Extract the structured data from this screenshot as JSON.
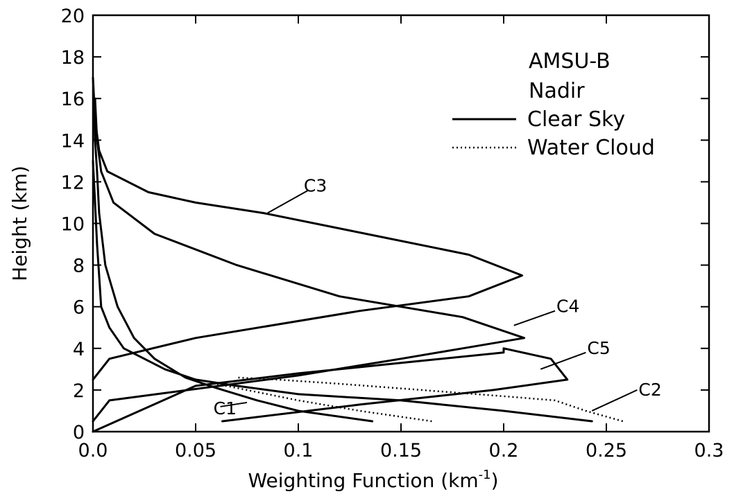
{
  "chart_data": {
    "type": "line",
    "xlabel": "Weighting Function (km",
    "xlabel_sup": "-1",
    "xlabel_close": ")",
    "ylabel": "Height (km)",
    "xlim": [
      0,
      0.3
    ],
    "ylim": [
      0,
      20
    ],
    "x_ticks": [
      0,
      0.05,
      0.1,
      0.15,
      0.2,
      0.25,
      0.3
    ],
    "x_tick_labels": [
      "0.0",
      "0.05",
      "0.1",
      "0.15",
      "0.2",
      "0.25",
      "0.3"
    ],
    "y_ticks": [
      0,
      2,
      4,
      6,
      8,
      10,
      12,
      14,
      16,
      18,
      20
    ],
    "y_tick_labels": [
      "0",
      "2",
      "4",
      "6",
      "8",
      "10",
      "12",
      "14",
      "16",
      "18",
      "20"
    ],
    "grid": false,
    "legend": {
      "placement": "top-right",
      "header": [
        "AMSU-B",
        "Nadir"
      ],
      "entries": [
        {
          "label": "Clear Sky",
          "style": "solid"
        },
        {
          "label": "Water Cloud",
          "style": "dotted"
        }
      ]
    },
    "series": [
      {
        "id": "C1",
        "style": "solid",
        "points": [
          [
            0.136,
            0.5
          ],
          [
            0.1,
            1.0
          ],
          [
            0.08,
            1.5
          ],
          [
            0.06,
            2.1
          ],
          [
            0.045,
            2.6
          ],
          [
            0.03,
            3.5
          ],
          [
            0.02,
            4.5
          ],
          [
            0.012,
            6.0
          ],
          [
            0.006,
            8.0
          ],
          [
            0.003,
            10.5
          ],
          [
            0.002,
            12.5
          ],
          [
            0.001,
            14.0
          ],
          [
            0.0005,
            16.0
          ]
        ]
      },
      {
        "id": "C2",
        "style": "solid",
        "points": [
          [
            0.0,
            0.5
          ],
          [
            0.008,
            1.5
          ],
          [
            0.1,
            2.7
          ],
          [
            0.15,
            3.5
          ],
          [
            0.18,
            4.0
          ],
          [
            0.21,
            4.5
          ],
          [
            0.18,
            5.5
          ],
          [
            0.12,
            6.5
          ],
          [
            0.07,
            8.0
          ],
          [
            0.03,
            9.5
          ],
          [
            0.01,
            11.0
          ],
          [
            0.004,
            12.5
          ],
          [
            0.002,
            14.0
          ],
          [
            0.001,
            16.0
          ]
        ]
      },
      {
        "id": "C3",
        "style": "solid",
        "points": [
          [
            0.0,
            2.5
          ],
          [
            0.008,
            3.5
          ],
          [
            0.05,
            4.5
          ],
          [
            0.13,
            5.8
          ],
          [
            0.183,
            6.5
          ],
          [
            0.209,
            7.5
          ],
          [
            0.183,
            8.5
          ],
          [
            0.133,
            9.5
          ],
          [
            0.083,
            10.5
          ],
          [
            0.05,
            11.0
          ],
          [
            0.027,
            11.5
          ],
          [
            0.007,
            12.5
          ],
          [
            0.003,
            13.5
          ],
          [
            0.001,
            15.0
          ],
          [
            0.0,
            17.0
          ]
        ]
      },
      {
        "id": "C4",
        "style": "solid",
        "points": [
          [
            0.0,
            0.0
          ],
          [
            0.05,
            2.2
          ],
          [
            0.1,
            2.8
          ],
          [
            0.15,
            3.3
          ],
          [
            0.2,
            3.8
          ],
          [
            0.2,
            4.0
          ],
          [
            0.223,
            3.5
          ],
          [
            0.231,
            2.5
          ],
          [
            0.195,
            2.0
          ],
          [
            0.13,
            1.3
          ],
          [
            0.063,
            0.5
          ]
        ]
      },
      {
        "id": "C5",
        "style": "solid",
        "points": [
          [
            0.243,
            0.5
          ],
          [
            0.2,
            1.0
          ],
          [
            0.15,
            1.5
          ],
          [
            0.1,
            1.8
          ],
          [
            0.07,
            2.2
          ],
          [
            0.05,
            2.5
          ],
          [
            0.035,
            3.0
          ],
          [
            0.025,
            3.5
          ],
          [
            0.015,
            4.0
          ],
          [
            0.008,
            5.0
          ],
          [
            0.004,
            6.0
          ],
          [
            0.003,
            7.5
          ],
          [
            0.002,
            9.0
          ],
          [
            0.001,
            11.0
          ],
          [
            0.0,
            13.0
          ]
        ]
      },
      {
        "id": "C1 cloud",
        "style": "dotted",
        "points": [
          [
            0.165,
            0.5
          ],
          [
            0.13,
            1.0
          ],
          [
            0.1,
            1.5
          ],
          [
            0.075,
            2.0
          ],
          [
            0.06,
            2.3
          ]
        ]
      },
      {
        "id": "C2 cloud",
        "style": "dotted",
        "points": [
          [
            0.258,
            0.5
          ],
          [
            0.24,
            1.0
          ],
          [
            0.225,
            1.5
          ],
          [
            0.2,
            1.7
          ],
          [
            0.16,
            2.0
          ],
          [
            0.12,
            2.3
          ],
          [
            0.09,
            2.5
          ],
          [
            0.07,
            2.6
          ]
        ]
      }
    ],
    "curve_labels": [
      {
        "text": "C1",
        "x": 0.058,
        "y": 1.1,
        "leader": [
          [
            0.062,
            1.2
          ],
          [
            0.075,
            1.4
          ]
        ]
      },
      {
        "text": "C2",
        "x": 0.265,
        "y": 2.0,
        "leader": [
          [
            0.265,
            2.0
          ],
          [
            0.243,
            1.0
          ]
        ]
      },
      {
        "text": "C3",
        "x": 0.102,
        "y": 11.8,
        "leader": [
          [
            0.105,
            11.6
          ],
          [
            0.085,
            10.5
          ]
        ]
      },
      {
        "text": "C4",
        "x": 0.225,
        "y": 6.0,
        "leader": [
          [
            0.225,
            5.8
          ],
          [
            0.205,
            5.1
          ]
        ]
      },
      {
        "text": "C5",
        "x": 0.24,
        "y": 4.0,
        "leader": [
          [
            0.24,
            3.8
          ],
          [
            0.218,
            3.0
          ]
        ]
      }
    ]
  }
}
